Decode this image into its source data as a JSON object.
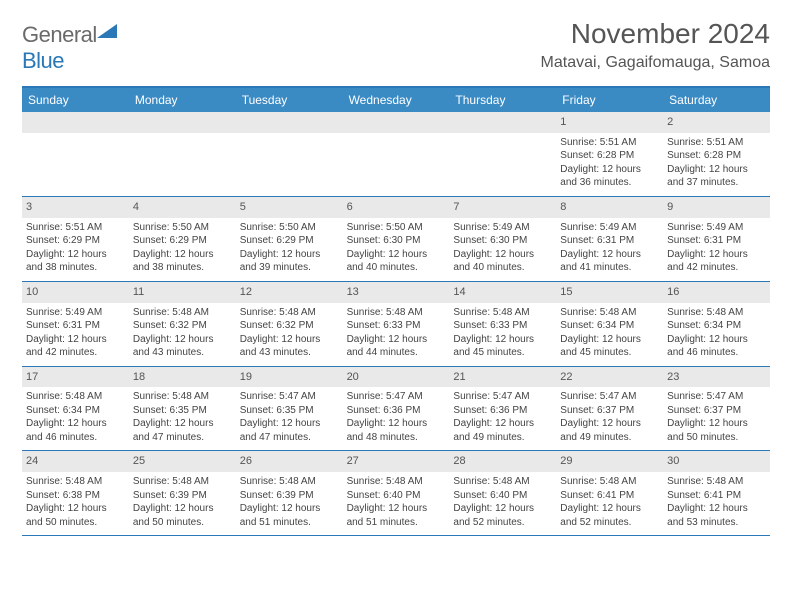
{
  "logo": {
    "text_gray": "General",
    "text_blue": "Blue",
    "tri_color": "#2a78b8"
  },
  "title": "November 2024",
  "location": "Matavai, Gagaifomauga, Samoa",
  "colors": {
    "header_bar": "#3a8ac4",
    "week_divider": "#2a78b8",
    "daynum_bg": "#e9e9e9",
    "text": "#444444"
  },
  "days_of_week": [
    "Sunday",
    "Monday",
    "Tuesday",
    "Wednesday",
    "Thursday",
    "Friday",
    "Saturday"
  ],
  "weeks": [
    [
      {
        "n": "",
        "sun": "",
        "set": "",
        "dl1": "",
        "dl2": ""
      },
      {
        "n": "",
        "sun": "",
        "set": "",
        "dl1": "",
        "dl2": ""
      },
      {
        "n": "",
        "sun": "",
        "set": "",
        "dl1": "",
        "dl2": ""
      },
      {
        "n": "",
        "sun": "",
        "set": "",
        "dl1": "",
        "dl2": ""
      },
      {
        "n": "",
        "sun": "",
        "set": "",
        "dl1": "",
        "dl2": ""
      },
      {
        "n": "1",
        "sun": "Sunrise: 5:51 AM",
        "set": "Sunset: 6:28 PM",
        "dl1": "Daylight: 12 hours",
        "dl2": "and 36 minutes."
      },
      {
        "n": "2",
        "sun": "Sunrise: 5:51 AM",
        "set": "Sunset: 6:28 PM",
        "dl1": "Daylight: 12 hours",
        "dl2": "and 37 minutes."
      }
    ],
    [
      {
        "n": "3",
        "sun": "Sunrise: 5:51 AM",
        "set": "Sunset: 6:29 PM",
        "dl1": "Daylight: 12 hours",
        "dl2": "and 38 minutes."
      },
      {
        "n": "4",
        "sun": "Sunrise: 5:50 AM",
        "set": "Sunset: 6:29 PM",
        "dl1": "Daylight: 12 hours",
        "dl2": "and 38 minutes."
      },
      {
        "n": "5",
        "sun": "Sunrise: 5:50 AM",
        "set": "Sunset: 6:29 PM",
        "dl1": "Daylight: 12 hours",
        "dl2": "and 39 minutes."
      },
      {
        "n": "6",
        "sun": "Sunrise: 5:50 AM",
        "set": "Sunset: 6:30 PM",
        "dl1": "Daylight: 12 hours",
        "dl2": "and 40 minutes."
      },
      {
        "n": "7",
        "sun": "Sunrise: 5:49 AM",
        "set": "Sunset: 6:30 PM",
        "dl1": "Daylight: 12 hours",
        "dl2": "and 40 minutes."
      },
      {
        "n": "8",
        "sun": "Sunrise: 5:49 AM",
        "set": "Sunset: 6:31 PM",
        "dl1": "Daylight: 12 hours",
        "dl2": "and 41 minutes."
      },
      {
        "n": "9",
        "sun": "Sunrise: 5:49 AM",
        "set": "Sunset: 6:31 PM",
        "dl1": "Daylight: 12 hours",
        "dl2": "and 42 minutes."
      }
    ],
    [
      {
        "n": "10",
        "sun": "Sunrise: 5:49 AM",
        "set": "Sunset: 6:31 PM",
        "dl1": "Daylight: 12 hours",
        "dl2": "and 42 minutes."
      },
      {
        "n": "11",
        "sun": "Sunrise: 5:48 AM",
        "set": "Sunset: 6:32 PM",
        "dl1": "Daylight: 12 hours",
        "dl2": "and 43 minutes."
      },
      {
        "n": "12",
        "sun": "Sunrise: 5:48 AM",
        "set": "Sunset: 6:32 PM",
        "dl1": "Daylight: 12 hours",
        "dl2": "and 43 minutes."
      },
      {
        "n": "13",
        "sun": "Sunrise: 5:48 AM",
        "set": "Sunset: 6:33 PM",
        "dl1": "Daylight: 12 hours",
        "dl2": "and 44 minutes."
      },
      {
        "n": "14",
        "sun": "Sunrise: 5:48 AM",
        "set": "Sunset: 6:33 PM",
        "dl1": "Daylight: 12 hours",
        "dl2": "and 45 minutes."
      },
      {
        "n": "15",
        "sun": "Sunrise: 5:48 AM",
        "set": "Sunset: 6:34 PM",
        "dl1": "Daylight: 12 hours",
        "dl2": "and 45 minutes."
      },
      {
        "n": "16",
        "sun": "Sunrise: 5:48 AM",
        "set": "Sunset: 6:34 PM",
        "dl1": "Daylight: 12 hours",
        "dl2": "and 46 minutes."
      }
    ],
    [
      {
        "n": "17",
        "sun": "Sunrise: 5:48 AM",
        "set": "Sunset: 6:34 PM",
        "dl1": "Daylight: 12 hours",
        "dl2": "and 46 minutes."
      },
      {
        "n": "18",
        "sun": "Sunrise: 5:48 AM",
        "set": "Sunset: 6:35 PM",
        "dl1": "Daylight: 12 hours",
        "dl2": "and 47 minutes."
      },
      {
        "n": "19",
        "sun": "Sunrise: 5:47 AM",
        "set": "Sunset: 6:35 PM",
        "dl1": "Daylight: 12 hours",
        "dl2": "and 47 minutes."
      },
      {
        "n": "20",
        "sun": "Sunrise: 5:47 AM",
        "set": "Sunset: 6:36 PM",
        "dl1": "Daylight: 12 hours",
        "dl2": "and 48 minutes."
      },
      {
        "n": "21",
        "sun": "Sunrise: 5:47 AM",
        "set": "Sunset: 6:36 PM",
        "dl1": "Daylight: 12 hours",
        "dl2": "and 49 minutes."
      },
      {
        "n": "22",
        "sun": "Sunrise: 5:47 AM",
        "set": "Sunset: 6:37 PM",
        "dl1": "Daylight: 12 hours",
        "dl2": "and 49 minutes."
      },
      {
        "n": "23",
        "sun": "Sunrise: 5:47 AM",
        "set": "Sunset: 6:37 PM",
        "dl1": "Daylight: 12 hours",
        "dl2": "and 50 minutes."
      }
    ],
    [
      {
        "n": "24",
        "sun": "Sunrise: 5:48 AM",
        "set": "Sunset: 6:38 PM",
        "dl1": "Daylight: 12 hours",
        "dl2": "and 50 minutes."
      },
      {
        "n": "25",
        "sun": "Sunrise: 5:48 AM",
        "set": "Sunset: 6:39 PM",
        "dl1": "Daylight: 12 hours",
        "dl2": "and 50 minutes."
      },
      {
        "n": "26",
        "sun": "Sunrise: 5:48 AM",
        "set": "Sunset: 6:39 PM",
        "dl1": "Daylight: 12 hours",
        "dl2": "and 51 minutes."
      },
      {
        "n": "27",
        "sun": "Sunrise: 5:48 AM",
        "set": "Sunset: 6:40 PM",
        "dl1": "Daylight: 12 hours",
        "dl2": "and 51 minutes."
      },
      {
        "n": "28",
        "sun": "Sunrise: 5:48 AM",
        "set": "Sunset: 6:40 PM",
        "dl1": "Daylight: 12 hours",
        "dl2": "and 52 minutes."
      },
      {
        "n": "29",
        "sun": "Sunrise: 5:48 AM",
        "set": "Sunset: 6:41 PM",
        "dl1": "Daylight: 12 hours",
        "dl2": "and 52 minutes."
      },
      {
        "n": "30",
        "sun": "Sunrise: 5:48 AM",
        "set": "Sunset: 6:41 PM",
        "dl1": "Daylight: 12 hours",
        "dl2": "and 53 minutes."
      }
    ]
  ]
}
